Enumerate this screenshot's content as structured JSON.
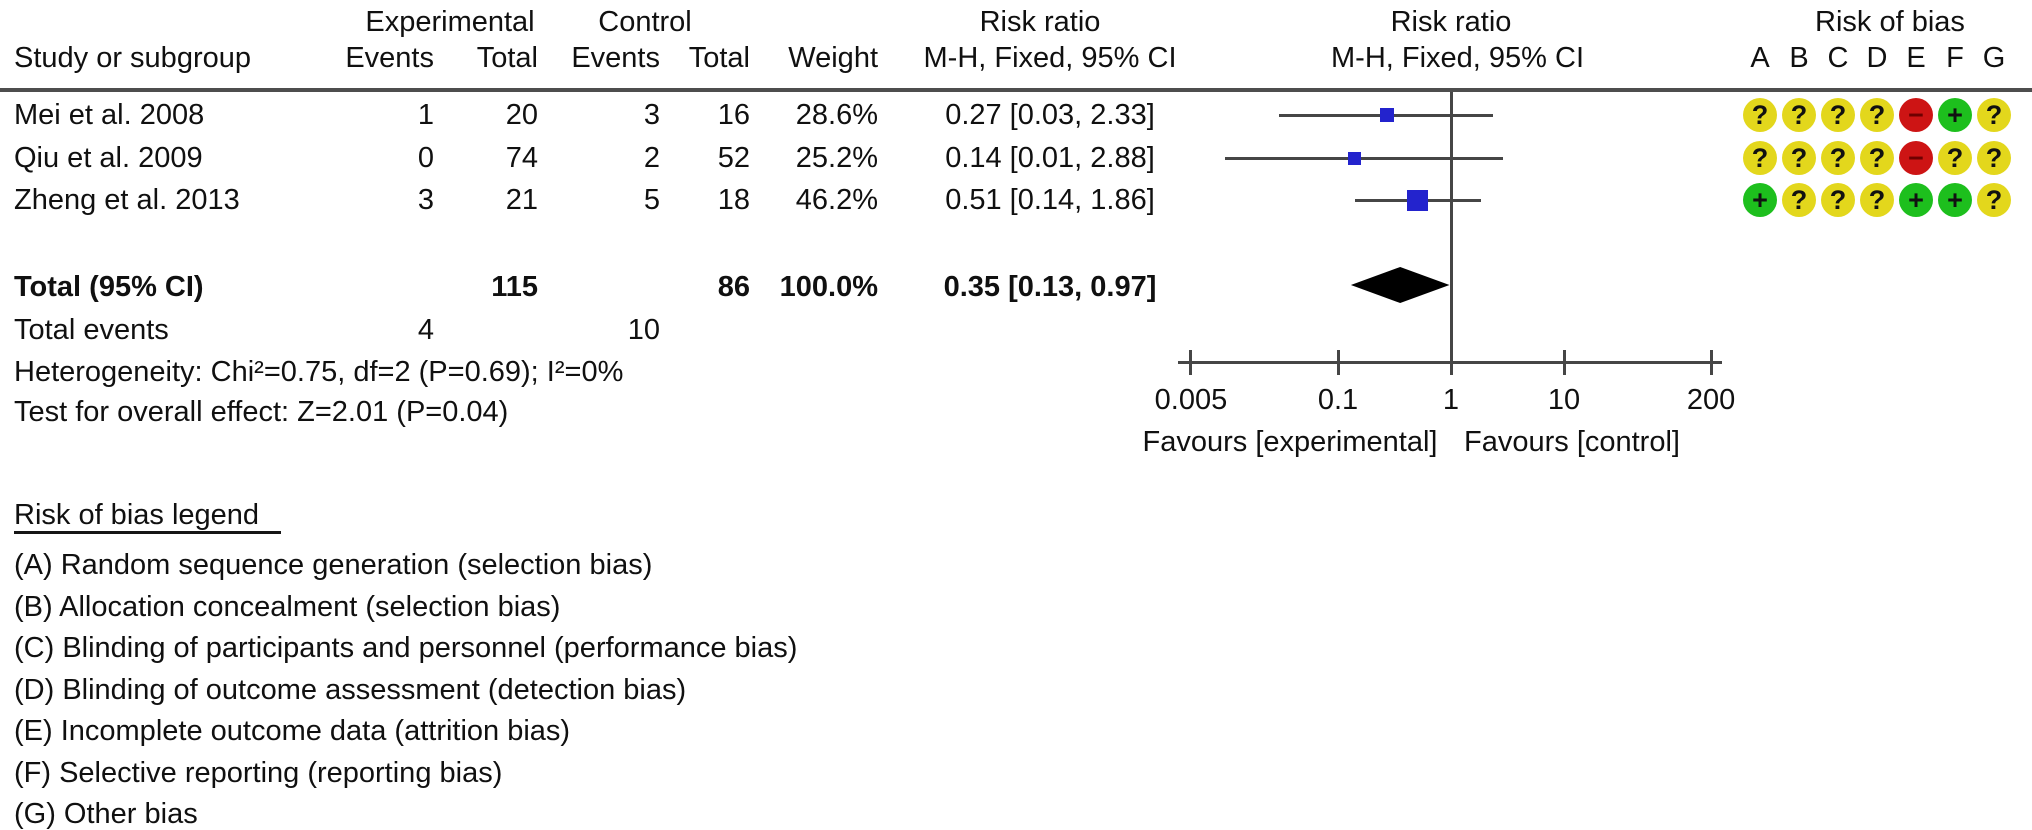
{
  "header": {
    "group": {
      "experimental": "Experimental",
      "control": "Control",
      "risk_ratio_text": "Risk ratio",
      "risk_ratio_plot": "Risk ratio",
      "risk_of_bias": "Risk of bias"
    },
    "columns": {
      "study": "Study or subgroup",
      "events_exp": "Events",
      "total_exp": "Total",
      "events_ctl": "Events",
      "total_ctl": "Total",
      "weight": "Weight",
      "mh_text": "M-H, Fixed, 95% CI",
      "mh_plot": "M-H, Fixed, 95% CI"
    },
    "bias_letters": [
      "A",
      "B",
      "C",
      "D",
      "E",
      "F",
      "G"
    ]
  },
  "studies": [
    {
      "name": "Mei et al. 2008",
      "events_exp": "1",
      "total_exp": "20",
      "events_ctl": "3",
      "total_ctl": "16",
      "weight": "28.6%",
      "rr_ci": "0.27 [0.03, 2.33]",
      "bias": [
        "?",
        "?",
        "?",
        "?",
        "-",
        "+",
        "?"
      ]
    },
    {
      "name": "Qiu et al. 2009",
      "events_exp": "0",
      "total_exp": "74",
      "events_ctl": "2",
      "total_ctl": "52",
      "weight": "25.2%",
      "rr_ci": "0.14 [0.01, 2.88]",
      "bias": [
        "?",
        "?",
        "?",
        "?",
        "-",
        "?",
        "?"
      ]
    },
    {
      "name": "Zheng et al. 2013",
      "events_exp": "3",
      "total_exp": "21",
      "events_ctl": "5",
      "total_ctl": "18",
      "weight": "46.2%",
      "rr_ci": "0.51 [0.14, 1.86]",
      "bias": [
        "+",
        "?",
        "?",
        "?",
        "+",
        "+",
        "?"
      ]
    }
  ],
  "totals": {
    "label": "Total (95% CI)",
    "total_exp": "115",
    "total_ctl": "86",
    "weight": "100.0%",
    "rr_ci": "0.35 [0.13, 0.97]",
    "events_label": "Total events",
    "events_exp": "4",
    "events_ctl": "10",
    "heterogeneity": "Heterogeneity: Chi²=0.75, df=2 (P=0.69); I²=0%",
    "overall_effect": "Test for overall effect: Z=2.01 (P=0.04)"
  },
  "axis": {
    "tick_labels": [
      "0.005",
      "0.1",
      "1",
      "10",
      "200"
    ],
    "favours_left": "Favours [experimental]",
    "favours_right": "Favours [control]"
  },
  "bias_legend": {
    "title": "Risk of bias legend",
    "items": [
      "(A) Random sequence generation (selection bias)",
      "(B) Allocation concealment (selection bias)",
      "(C) Blinding of participants and personnel (performance bias)",
      "(D) Blinding of outcome assessment (detection bias)",
      "(E) Incomplete outcome data (attrition bias)",
      "(F) Selective reporting (reporting bias)",
      "(G) Other bias"
    ]
  },
  "colors": {
    "square_blue": "#2323cd",
    "diamond_black": "#000000",
    "line_gray": "#464646",
    "bias_yellow": "#e3d71c",
    "bias_green": "#1dbf1d",
    "bias_red": "#cd1414"
  },
  "chart_data": {
    "type": "scatter",
    "subtype": "forest_plot_risk_ratio_MH_fixed",
    "x_scale": "log",
    "x_ticks": [
      0.005,
      0.1,
      1,
      10,
      200
    ],
    "null_line": 1,
    "studies": [
      {
        "name": "Mei et al. 2008",
        "rr": 0.27,
        "ci_low": 0.03,
        "ci_high": 2.33,
        "weight_pct": 28.6
      },
      {
        "name": "Qiu et al. 2009",
        "rr": 0.14,
        "ci_low": 0.01,
        "ci_high": 2.88,
        "weight_pct": 25.2
      },
      {
        "name": "Zheng et al. 2013",
        "rr": 0.51,
        "ci_low": 0.14,
        "ci_high": 1.86,
        "weight_pct": 46.2
      }
    ],
    "total": {
      "rr": 0.35,
      "ci_low": 0.13,
      "ci_high": 0.97,
      "weight_pct": 100.0
    },
    "xlabel_left": "Favours [experimental]",
    "xlabel_right": "Favours [control]"
  }
}
